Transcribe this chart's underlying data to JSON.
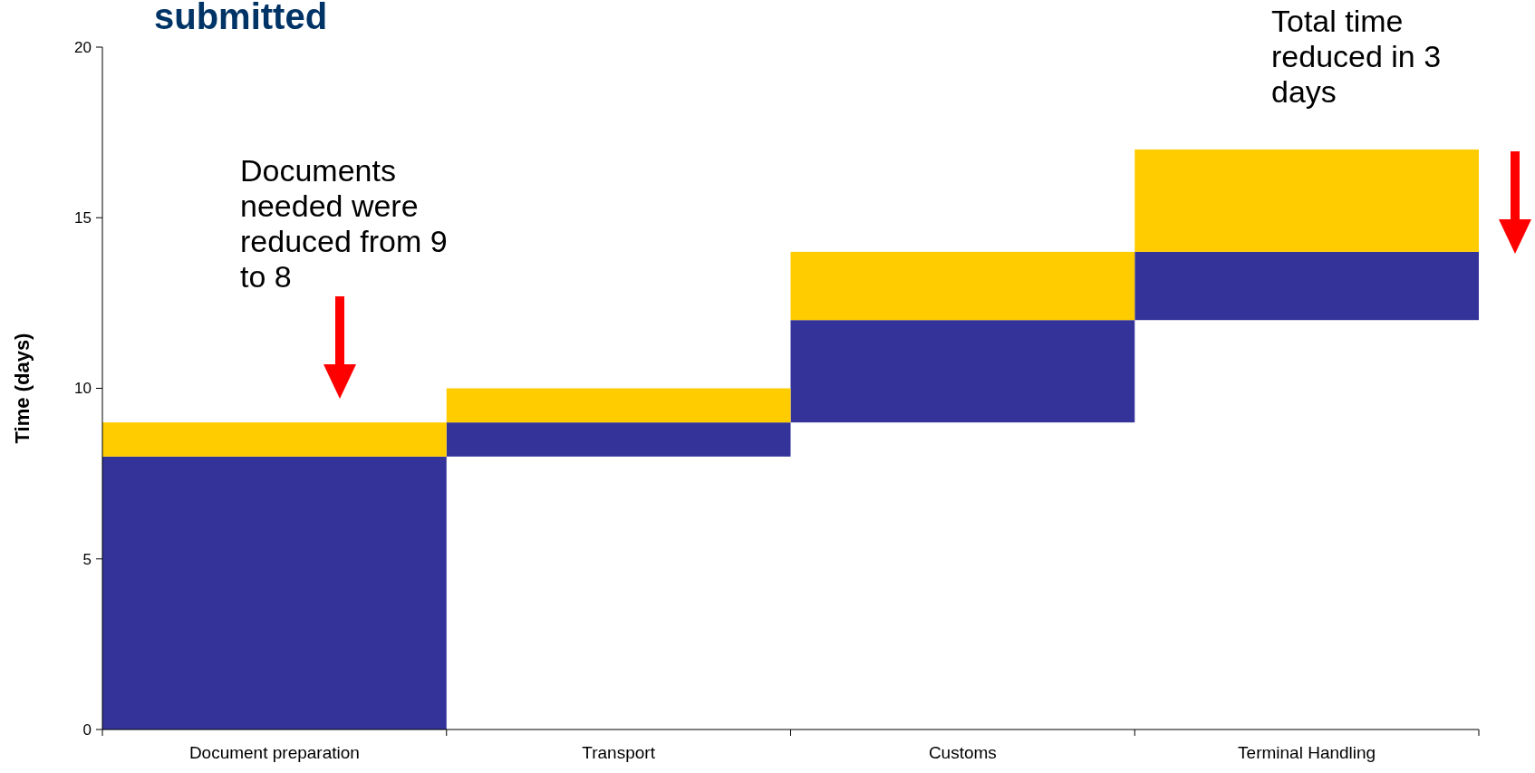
{
  "chart_data": {
    "type": "bar",
    "title": "submitted",
    "ylabel": "Time (days)",
    "categories": [
      "Document preparation",
      "Transport",
      "Customs",
      "Terminal Handling"
    ],
    "series": [
      {
        "color": "#333399",
        "base": [
          0,
          8,
          9,
          12
        ],
        "values": [
          8,
          1,
          3,
          2
        ]
      },
      {
        "color": "#ffcc00",
        "base": [
          8,
          9,
          12,
          14
        ],
        "values": [
          1,
          1,
          2,
          3
        ]
      }
    ],
    "ylim": [
      0,
      20
    ],
    "yticks": [
      0,
      5,
      10,
      15,
      20
    ],
    "grid": false,
    "annotations": [
      "Documents needed were reduced from 9 to 8",
      "Total time reduced in 3 days"
    ]
  }
}
